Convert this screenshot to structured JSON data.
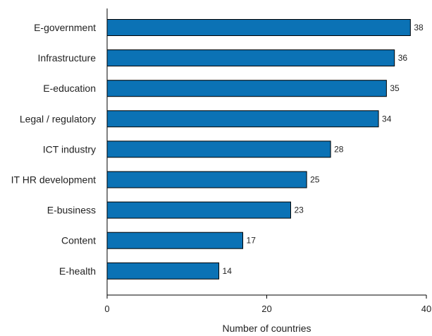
{
  "chart_data": {
    "type": "bar",
    "orientation": "horizontal",
    "categories": [
      "E-government",
      "Infrastructure",
      "E-education",
      "Legal / regulatory",
      "ICT industry",
      "IT HR development",
      "E-business",
      "Content",
      "E-health"
    ],
    "values": [
      38,
      36,
      35,
      34,
      28,
      25,
      23,
      17,
      14
    ],
    "title": "",
    "xlabel": "Number of countries",
    "ylabel": "",
    "xlim": [
      0,
      40
    ],
    "xticks": [
      0,
      20,
      40
    ],
    "grid": false,
    "bar_color": "#0b72b5",
    "data_labels": true
  }
}
